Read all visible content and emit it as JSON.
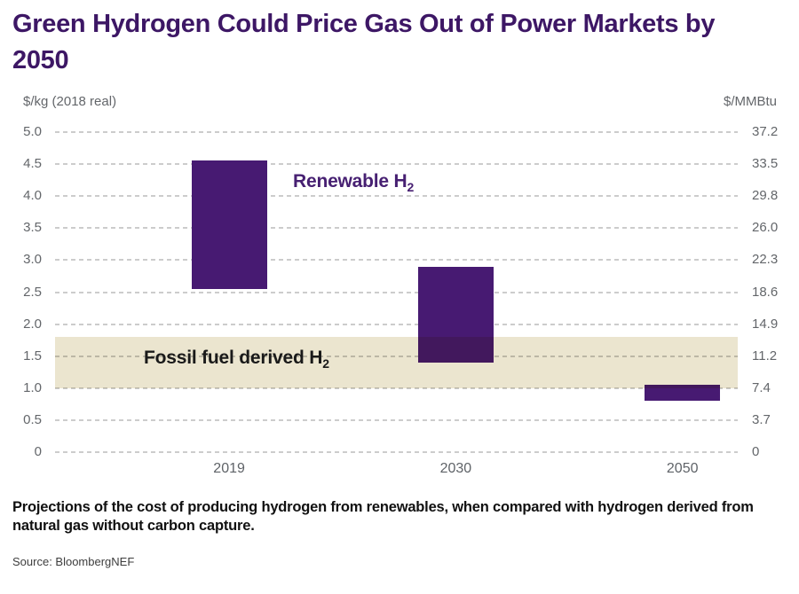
{
  "title": "Green Hydrogen Could Price Gas Out of Power Markets by 2050",
  "caption": "Projections of the cost of producing hydrogen from renewables, when compared with hydrogen derived from natural gas without carbon capture.",
  "source": "Source: BloombergNEF",
  "colors": {
    "title_purple": "#3d1765",
    "bar_purple": "#471a72",
    "band_beige": "#ebe5cf",
    "renewable_label_purple": "#472072",
    "fossil_label_dark": "#1a1a1a",
    "axis_text_gray": "#63666a",
    "gridline_gray": "#cccccc"
  },
  "chart_data": {
    "type": "bar",
    "subtype": "floating-column-ranges",
    "title": "Green Hydrogen Could Price Gas Out of Power Markets by 2050",
    "categories": [
      "2019",
      "2030",
      "2050"
    ],
    "series": [
      {
        "name": "Renewable H2 production cost range ($/kg)",
        "ranges": [
          [
            2.55,
            4.55
          ],
          [
            1.4,
            2.9
          ],
          [
            0.8,
            1.05
          ]
        ]
      }
    ],
    "band": {
      "label": "Fossil fuel derived H2",
      "range": [
        1.0,
        1.8
      ],
      "unit": "$/kg"
    },
    "left_axis": {
      "label": "$/kg (2018 real)",
      "ticks": [
        "5.0",
        "4.5",
        "4.0",
        "3.5",
        "3.0",
        "2.5",
        "2.0",
        "1.5",
        "1.0",
        "0.5",
        "0"
      ],
      "ylim": [
        0,
        5
      ]
    },
    "right_axis": {
      "label": "$/MMBtu",
      "ticks": [
        "37.2",
        "33.5",
        "29.8",
        "26.0",
        "22.3",
        "18.6",
        "14.9",
        "11.2",
        "7.4",
        "3.7",
        "0"
      ],
      "ylim": [
        0,
        37.2
      ]
    },
    "grid": "horizontal-dashed",
    "legend": "none",
    "renewable_label": {
      "text": "Renewable H",
      "sub": "2"
    },
    "fossil_label": {
      "text": "Fossil fuel derived H",
      "sub": "2"
    }
  }
}
